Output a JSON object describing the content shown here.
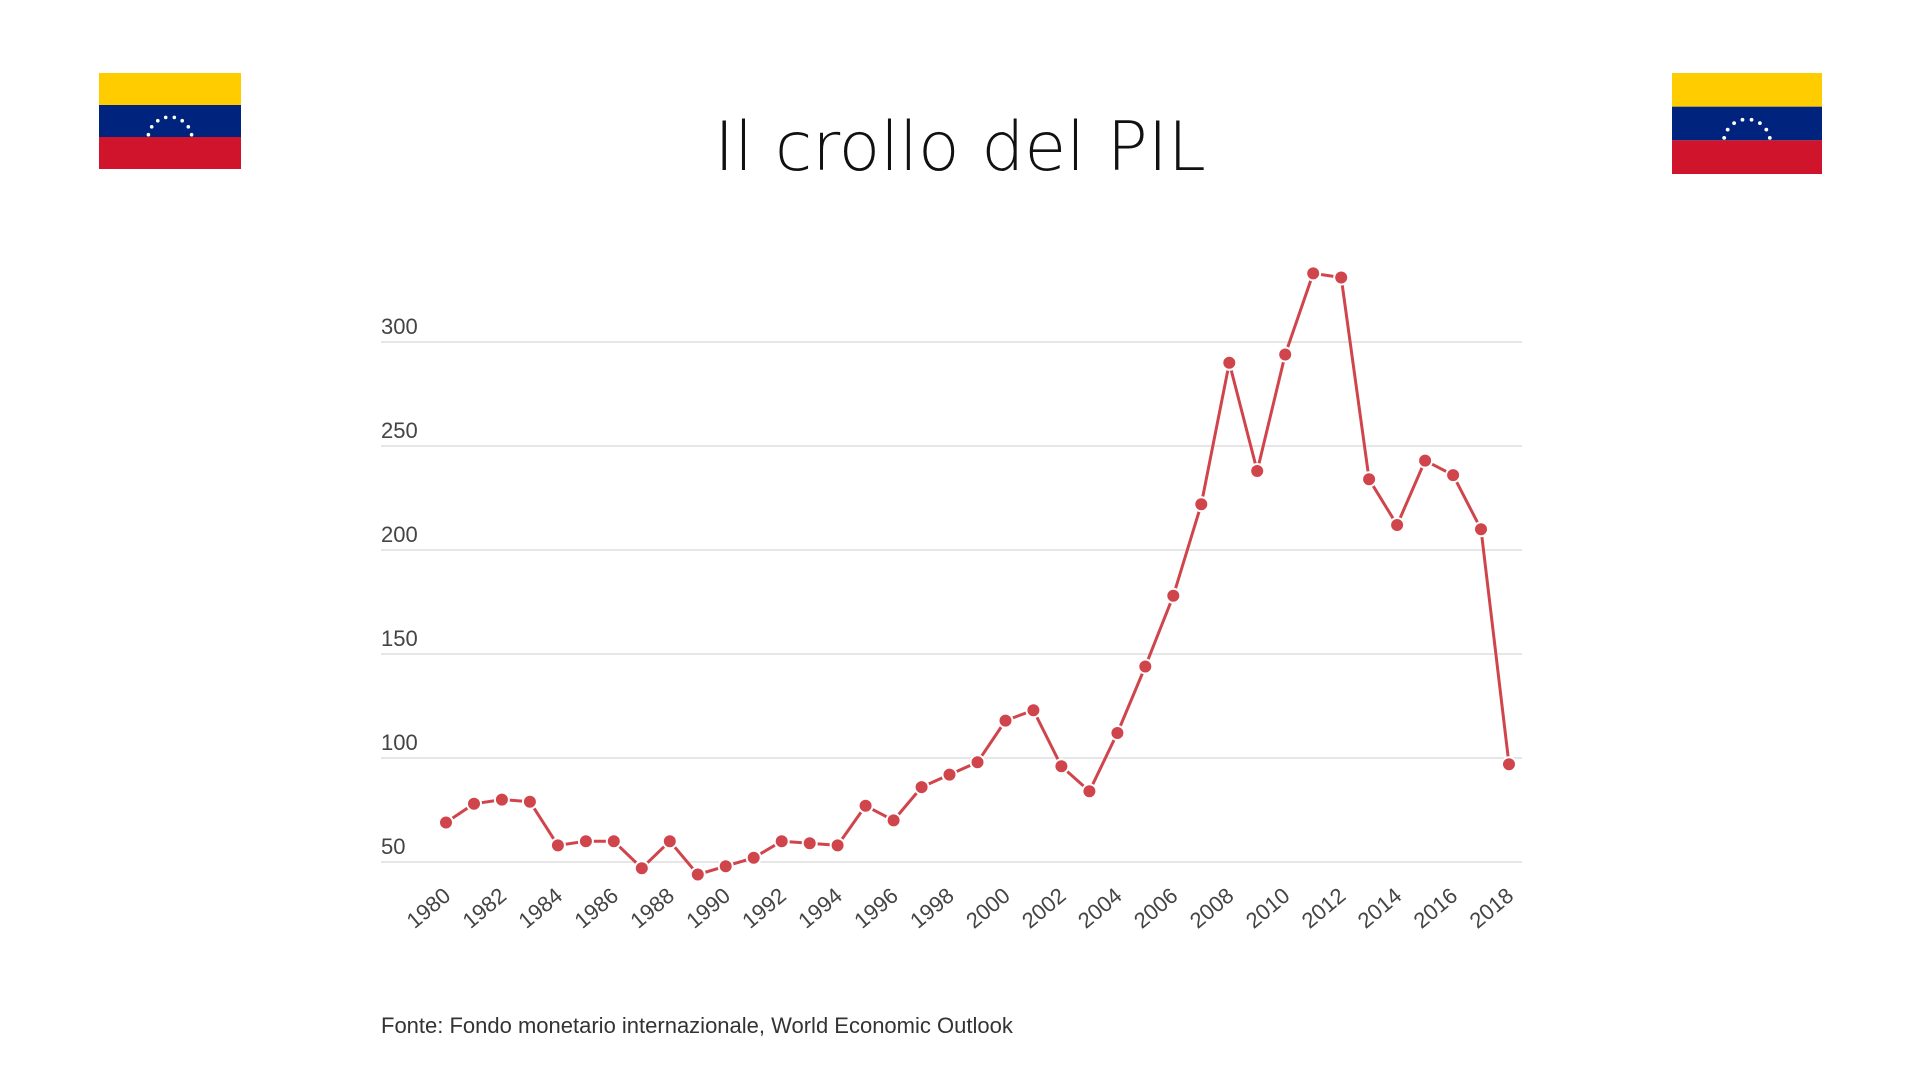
{
  "slide": {
    "title": "Il crollo del PIL",
    "source": "Fonte: Fondo monetario internazionale, World Economic Outlook"
  },
  "flags": {
    "left": {
      "icon": "venezuela-flag-icon",
      "colors": [
        "#FFCC00",
        "#00247D",
        "#CF142B"
      ]
    },
    "right": {
      "icon": "venezuela-flag-icon",
      "colors": [
        "#FFCC00",
        "#00247D",
        "#CF142B"
      ]
    }
  },
  "colors": {
    "series": "#D0454C",
    "grid": "#DDDDDD",
    "tick_text": "#444444"
  },
  "chart_data": {
    "type": "line",
    "title": "",
    "xlabel": "",
    "ylabel": "",
    "ylim": [
      40,
      340
    ],
    "yticks": [
      50,
      100,
      150,
      200,
      250,
      300
    ],
    "grid": true,
    "x": [
      1980,
      1981,
      1982,
      1983,
      1984,
      1985,
      1986,
      1987,
      1988,
      1989,
      1990,
      1991,
      1992,
      1993,
      1994,
      1995,
      1996,
      1997,
      1998,
      1999,
      2000,
      2001,
      2002,
      2003,
      2004,
      2005,
      2006,
      2007,
      2008,
      2009,
      2010,
      2011,
      2012,
      2013,
      2014,
      2015,
      2016,
      2017,
      2018
    ],
    "xtick_labels": [
      "1980",
      "1982",
      "1984",
      "1986",
      "1988",
      "1990",
      "1992",
      "1994",
      "1996",
      "1998",
      "2000",
      "2002",
      "2004",
      "2006",
      "2008",
      "2010",
      "2012",
      "2014",
      "2016",
      "2018"
    ],
    "series": [
      {
        "values": [
          69,
          78,
          80,
          79,
          58,
          60,
          60,
          47,
          60,
          44,
          48,
          52,
          60,
          59,
          58,
          77,
          70,
          86,
          92,
          98,
          118,
          123,
          96,
          84,
          112,
          144,
          178,
          222,
          290,
          238,
          294,
          333,
          331,
          234,
          212,
          243,
          236,
          210,
          97
        ]
      }
    ]
  }
}
